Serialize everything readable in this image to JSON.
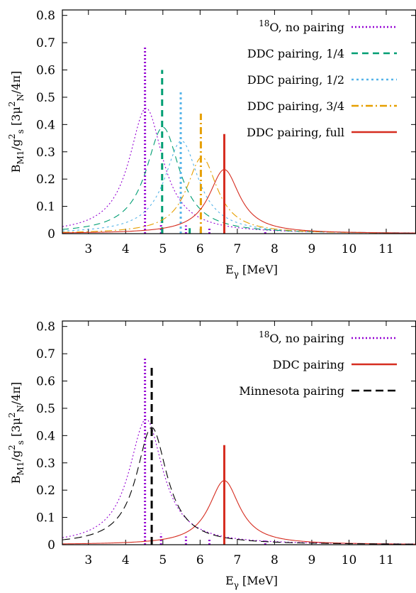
{
  "chart_data": [
    {
      "type": "line",
      "panel": "top",
      "xlabel": {
        "main": "E",
        "sub": "γ",
        "rest": "[MeV]"
      },
      "ylabel": {
        "main": "B",
        "sub1": "M1",
        "mid": "/g",
        "sup1": "2",
        "sub2": "s",
        "bracket_open": "[3μ",
        "sup2": "2",
        "sub3": "N",
        "bracket_close": "/4π]"
      },
      "xlim": [
        2.3,
        11.8
      ],
      "ylim": [
        0,
        0.82
      ],
      "xticks": [
        "3",
        "4",
        "5",
        "6",
        "7",
        "8",
        "9",
        "10",
        "11"
      ],
      "yticks": [
        "0",
        "0.1",
        "0.2",
        "0.3",
        "0.4",
        "0.5",
        "0.6",
        "0.7",
        "0.8"
      ],
      "legend_position": "top-right",
      "grid": false,
      "series": [
        {
          "name": "O, no pairing",
          "name_sup": "18",
          "color": "#9400d3",
          "dash": "2,3",
          "peak_x": 4.55,
          "peak_y": 0.46,
          "width": 0.55,
          "spikes": [
            [
              4.52,
              0.69
            ],
            [
              4.95,
              0.04
            ],
            [
              5.62,
              0.03
            ],
            [
              6.25,
              0.02
            ],
            [
              7.75,
              0.015
            ]
          ]
        },
        {
          "name": "DDC pairing, 1/4",
          "color": "#009e73",
          "dash": "9,6",
          "peak_x": 5.0,
          "peak_y": 0.39,
          "width": 0.55,
          "spikes": [
            [
              4.98,
              0.6
            ],
            [
              5.72,
              0.02
            ]
          ]
        },
        {
          "name": "DDC pairing, 1/2",
          "color": "#56b4e9",
          "dash": "3,4",
          "peak_x": 5.5,
          "peak_y": 0.34,
          "width": 0.55,
          "spikes": [
            [
              5.48,
              0.52
            ]
          ]
        },
        {
          "name": "DDC pairing, 3/4",
          "color": "#e69f00",
          "dash": "10,4,2,4",
          "peak_x": 6.05,
          "peak_y": 0.28,
          "width": 0.5,
          "spikes": [
            [
              6.02,
              0.44
            ]
          ]
        },
        {
          "name": "DDC pairing, full",
          "color": "#d62d20",
          "dash": "",
          "peak_x": 6.65,
          "peak_y": 0.235,
          "width": 0.5,
          "spikes": [
            [
              6.65,
              0.365
            ]
          ]
        }
      ]
    },
    {
      "type": "line",
      "panel": "bottom",
      "xlabel": {
        "main": "E",
        "sub": "γ",
        "rest": "[MeV]"
      },
      "ylabel": {
        "main": "B",
        "sub1": "M1",
        "mid": "/g",
        "sup1": "2",
        "sub2": "s",
        "bracket_open": "[3μ",
        "sup2": "2",
        "sub3": "N",
        "bracket_close": "/4π]"
      },
      "xlim": [
        2.3,
        11.8
      ],
      "ylim": [
        0,
        0.82
      ],
      "xticks": [
        "3",
        "4",
        "5",
        "6",
        "7",
        "8",
        "9",
        "10",
        "11"
      ],
      "yticks": [
        "0",
        "0.1",
        "0.2",
        "0.3",
        "0.4",
        "0.5",
        "0.6",
        "0.7",
        "0.8"
      ],
      "legend_position": "top-right",
      "grid": false,
      "series": [
        {
          "name": "O, no pairing",
          "name_sup": "18",
          "color": "#9400d3",
          "dash": "2,3",
          "peak_x": 4.55,
          "peak_y": 0.46,
          "width": 0.55,
          "spikes": [
            [
              4.52,
              0.69
            ],
            [
              4.95,
              0.04
            ],
            [
              5.62,
              0.03
            ],
            [
              6.25,
              0.02
            ],
            [
              7.75,
              0.015
            ]
          ]
        },
        {
          "name": "DDC pairing",
          "color": "#d62d20",
          "dash": "",
          "peak_x": 6.65,
          "peak_y": 0.235,
          "width": 0.5,
          "spikes": [
            [
              6.65,
              0.365
            ]
          ]
        },
        {
          "name": "Minnesota pairing",
          "color": "#000000",
          "dash": "11,6",
          "peak_x": 4.7,
          "peak_y": 0.43,
          "width": 0.5,
          "spikes": [
            [
              4.7,
              0.66
            ]
          ]
        }
      ]
    }
  ]
}
